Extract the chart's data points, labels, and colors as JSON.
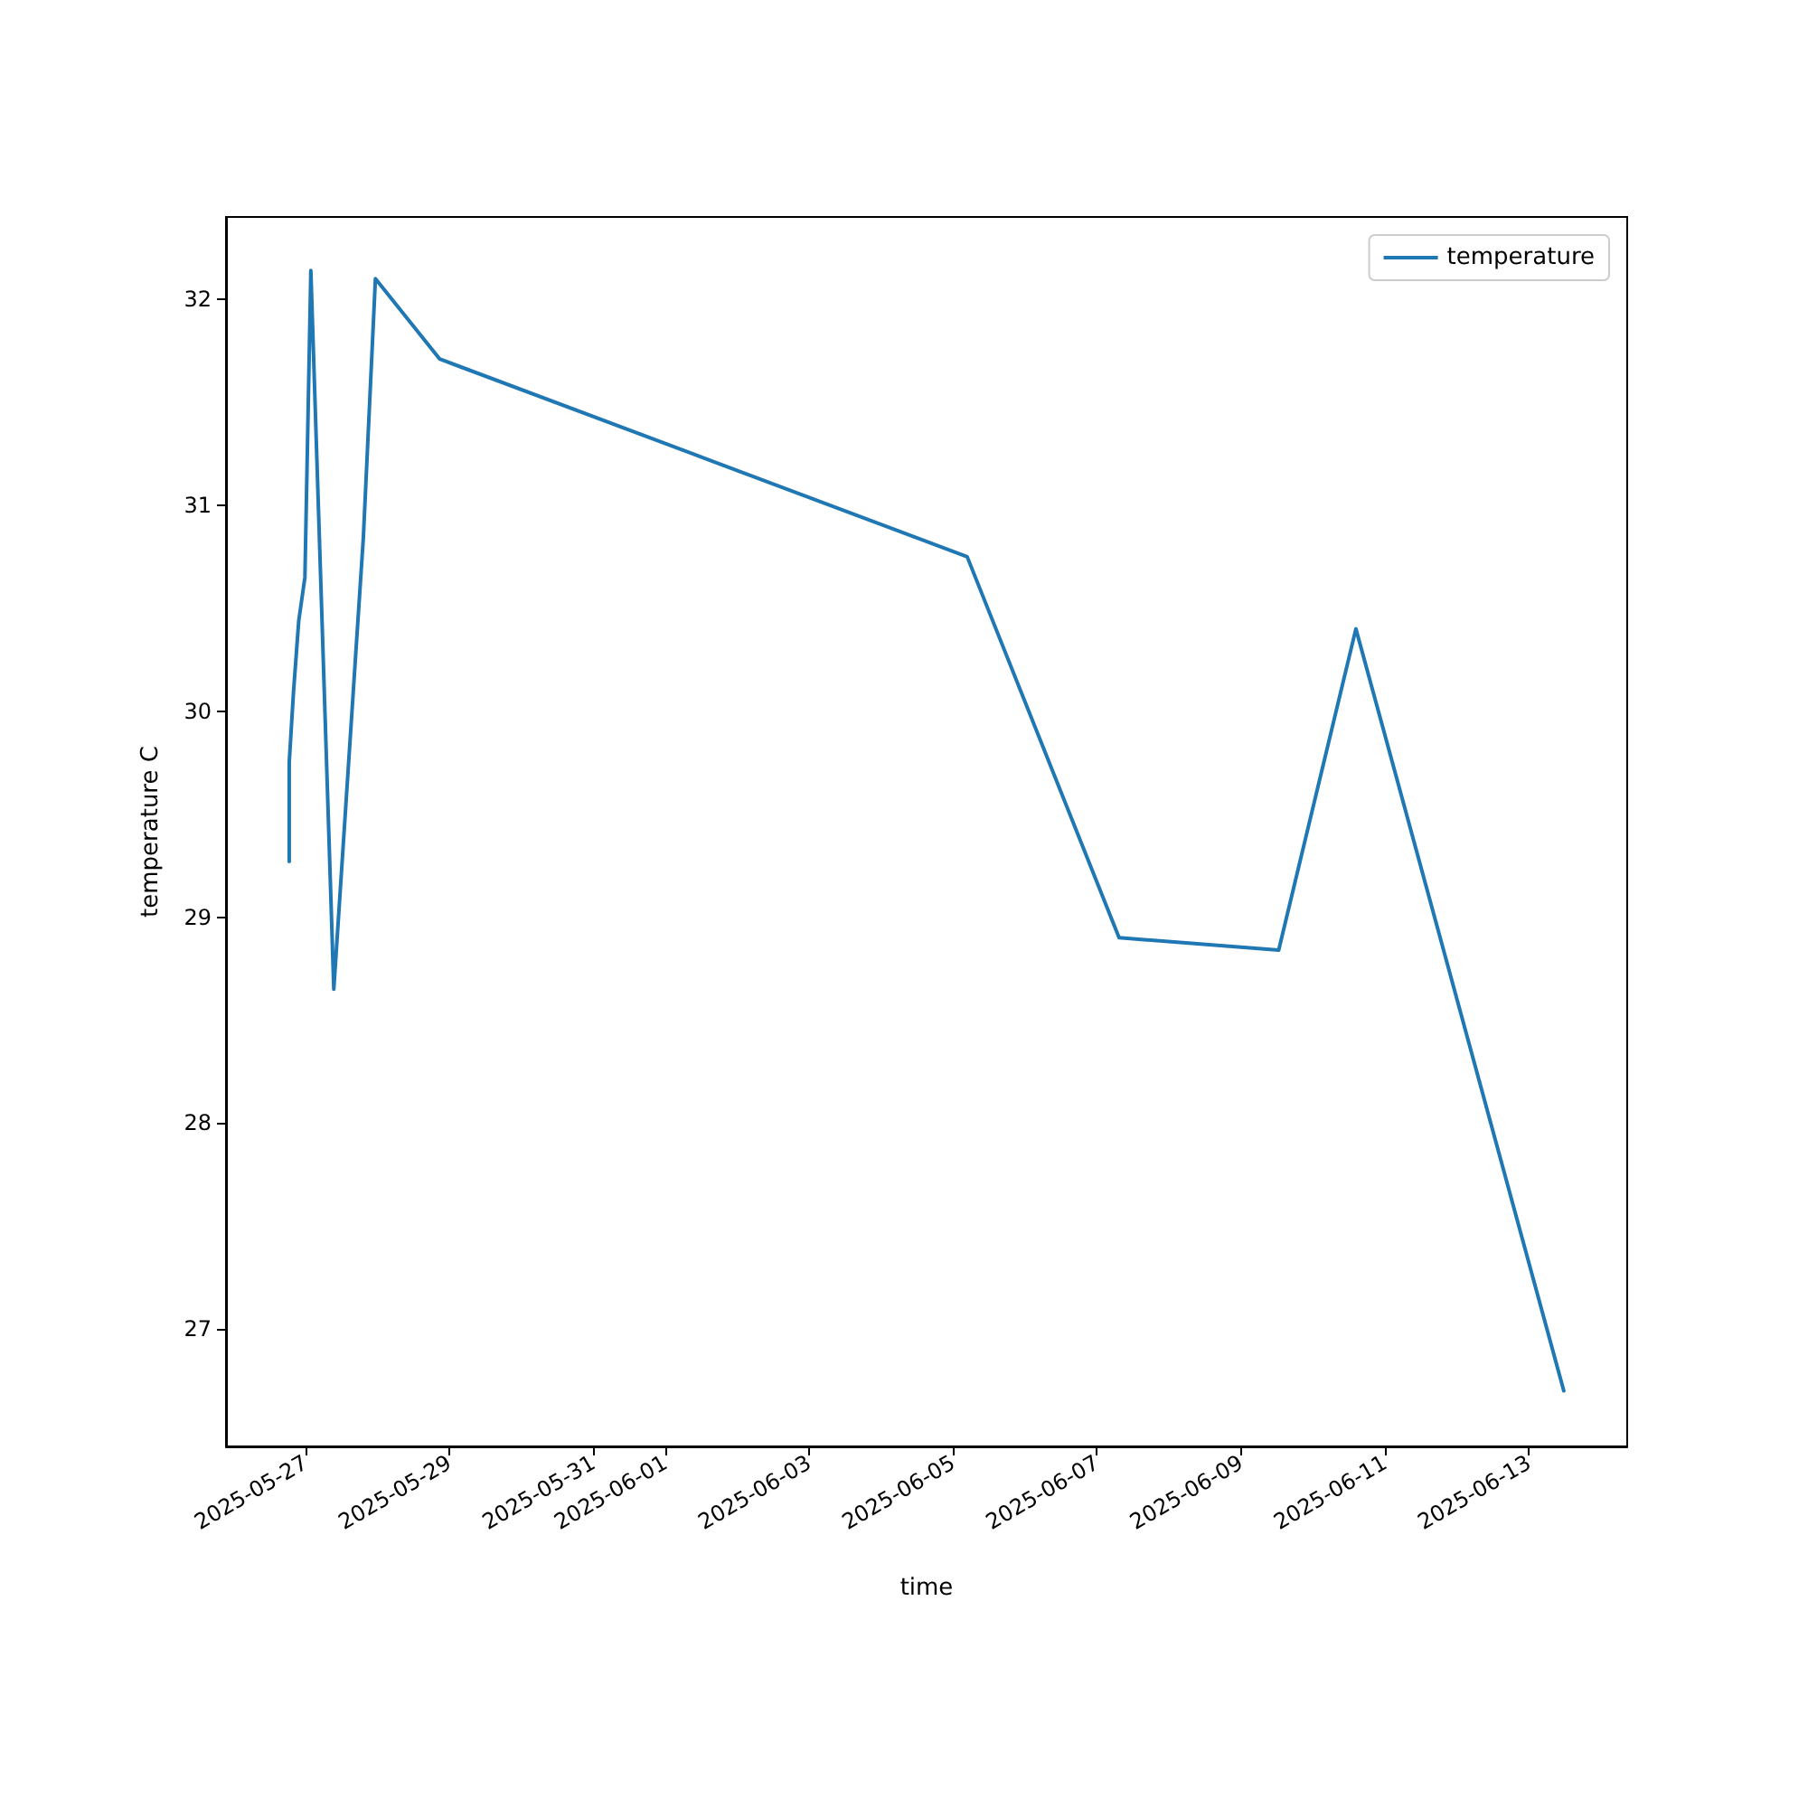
{
  "chart_data": {
    "type": "line",
    "xlabel": "time",
    "ylabel": "temperature C",
    "series": [
      {
        "name": "temperature",
        "color": "#1f77b4",
        "x": [
          "2025-05-26T18:35",
          "2025-05-26T18:35",
          "2025-05-26T20:00",
          "2025-05-26T21:46",
          "2025-05-26T23:49",
          "2025-05-27T01:48",
          "2025-05-27T09:27",
          "2025-05-27T19:18",
          "2025-05-27T23:20",
          "2025-05-28T20:48",
          "2025-06-05T04:42",
          "2025-06-07T07:22",
          "2025-06-09T12:36",
          "2025-06-10T14:21",
          "2025-06-13T11:41"
        ],
        "values": [
          29.27,
          29.75,
          30.09,
          30.44,
          30.65,
          32.14,
          28.65,
          30.84,
          32.1,
          31.71,
          30.75,
          28.9,
          28.84,
          30.4,
          26.7
        ]
      }
    ],
    "xlim": [
      "2025-05-25T21:30",
      "2025-06-14T08:50"
    ],
    "xticks": [
      "2025-05-27",
      "2025-05-29",
      "2025-05-31",
      "2025-06-01",
      "2025-06-03",
      "2025-06-05",
      "2025-06-07",
      "2025-06-09",
      "2025-06-11",
      "2025-06-13"
    ],
    "ylim": [
      26.43,
      32.4
    ],
    "yticks": [
      27,
      28,
      29,
      30,
      31,
      32
    ],
    "grid": false,
    "legend": "top right",
    "marker": "none",
    "line_style": "solid"
  }
}
